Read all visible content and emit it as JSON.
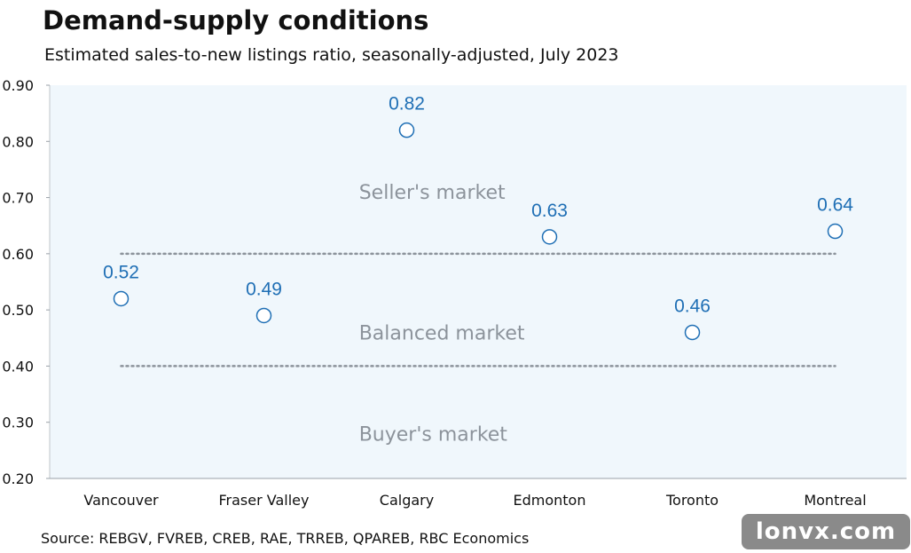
{
  "title": "Demand-supply conditions",
  "subtitle": "Estimated sales-to-new listings ratio, seasonally-adjusted, July 2023",
  "source": "Source: REBGV, FVREB, CREB, RAE, TRREB, QPAREB, RBC Economics",
  "watermark": "lonvx.com",
  "colors": {
    "plot_background": "#f0f7fc",
    "marker": "#1f6fb5",
    "data_label": "#1f6fb5",
    "threshold_line": "#8c939b",
    "zone_label": "#8c939b"
  },
  "chart_data": {
    "type": "scatter",
    "categories": [
      "Vancouver",
      "Fraser Valley",
      "Calgary",
      "Edmonton",
      "Toronto",
      "Montreal"
    ],
    "values": [
      0.52,
      0.49,
      0.82,
      0.63,
      0.46,
      0.64
    ],
    "data_labels": [
      "0.52",
      "0.49",
      "0.82",
      "0.63",
      "0.46",
      "0.64"
    ],
    "ylim": [
      0.2,
      0.9
    ],
    "yticks": [
      0.2,
      0.3,
      0.4,
      0.5,
      0.6,
      0.7,
      0.8,
      0.9
    ],
    "ytick_labels": [
      "0.20",
      "0.30",
      "0.40",
      "0.50",
      "0.60",
      "0.70",
      "0.80",
      "0.90"
    ],
    "marker": "hollow-circle",
    "grid": false,
    "reference_lines": [
      {
        "y": 0.6,
        "style": "dotted"
      },
      {
        "y": 0.4,
        "style": "dotted"
      }
    ],
    "zones": [
      {
        "label": "Seller's market",
        "y": 0.71
      },
      {
        "label": "Balanced market",
        "y": 0.46
      },
      {
        "label": "Buyer's market",
        "y": 0.28
      }
    ]
  }
}
